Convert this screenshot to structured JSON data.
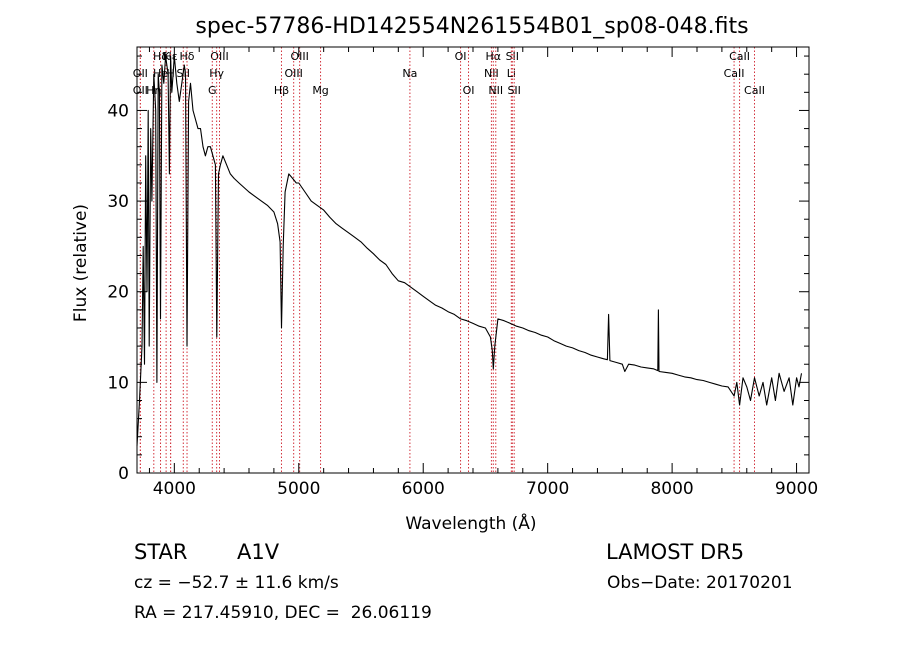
{
  "chart_data": {
    "type": "line",
    "title": "spec-57786-HD142554N261554B01_sp08-048.fits",
    "xlabel": "Wavelength (Å)",
    "ylabel": "Flux (relative)",
    "xlim": [
      3700,
      9100
    ],
    "ylim": [
      0,
      47
    ],
    "x_ticks": [
      4000,
      5000,
      6000,
      7000,
      8000,
      9000
    ],
    "y_ticks": [
      0,
      10,
      20,
      30,
      40
    ],
    "grid": false,
    "series": [
      {
        "x": [
          3700,
          3720,
          3740,
          3750,
          3760,
          3770,
          3780,
          3790,
          3798,
          3810,
          3820,
          3835,
          3850,
          3860,
          3870,
          3880,
          3889,
          3900,
          3915,
          3930,
          3950,
          3960,
          3970,
          3980,
          3990,
          4000,
          4020,
          4040,
          4060,
          4080,
          4090,
          4102,
          4115,
          4130,
          4150,
          4170,
          4190,
          4210,
          4230,
          4250,
          4270,
          4290,
          4310,
          4330,
          4341,
          4355,
          4370,
          4390,
          4420,
          4450,
          4480,
          4520,
          4560,
          4600,
          4650,
          4700,
          4750,
          4800,
          4830,
          4850,
          4861,
          4875,
          4890,
          4920,
          4950,
          4980,
          5000,
          5050,
          5100,
          5150,
          5200,
          5250,
          5300,
          5350,
          5400,
          5450,
          5500,
          5550,
          5600,
          5650,
          5700,
          5750,
          5800,
          5850,
          5900,
          5950,
          6000,
          6050,
          6100,
          6150,
          6200,
          6250,
          6300,
          6350,
          6400,
          6450,
          6500,
          6540,
          6555,
          6563,
          6575,
          6600,
          6650,
          6700,
          6750,
          6800,
          6850,
          6900,
          6950,
          7000,
          7050,
          7100,
          7150,
          7200,
          7250,
          7300,
          7350,
          7400,
          7450,
          7480,
          7490,
          7500,
          7550,
          7600,
          7620,
          7650,
          7700,
          7750,
          7800,
          7850,
          7885,
          7890,
          7895,
          7950,
          8000,
          8050,
          8100,
          8150,
          8200,
          8250,
          8300,
          8350,
          8400,
          8450,
          8498,
          8520,
          8542,
          8570,
          8600,
          8630,
          8662,
          8700,
          8730,
          8760,
          8800,
          8830,
          8860,
          8900,
          8940,
          8970,
          9000,
          9020,
          9040
        ],
        "y": [
          3,
          8,
          14,
          25,
          12,
          35,
          20,
          40,
          14,
          38,
          30,
          44,
          40,
          10,
          44,
          42,
          17,
          45,
          43,
          46,
          44,
          33,
          46,
          42,
          44,
          46,
          43,
          41,
          43,
          45,
          44,
          14,
          41,
          43,
          40,
          39,
          38,
          38,
          36,
          35,
          36,
          36,
          35,
          34,
          15,
          33,
          34,
          35,
          34,
          33,
          32.5,
          32,
          31.5,
          31,
          30.5,
          30,
          29.5,
          28.8,
          27.5,
          25.5,
          16,
          25,
          31,
          33,
          32.5,
          32,
          32,
          31,
          30,
          29.5,
          29,
          28.2,
          27.5,
          27,
          26.5,
          26,
          25.5,
          24.8,
          24.2,
          23.5,
          23,
          22,
          21.2,
          21,
          20.5,
          20,
          19.5,
          19,
          18.5,
          18.2,
          17.8,
          17.5,
          17,
          16.8,
          16.5,
          16.2,
          16,
          15,
          13.5,
          11.5,
          14,
          17,
          16.8,
          16.5,
          16.2,
          16,
          15.7,
          15.5,
          15.2,
          15,
          14.6,
          14.3,
          14,
          13.8,
          13.5,
          13.3,
          13,
          12.8,
          12.6,
          12.5,
          17.5,
          12.4,
          12.2,
          12,
          11.2,
          12,
          11.9,
          11.7,
          11.6,
          11.5,
          11.3,
          18,
          11.2,
          11.1,
          11,
          10.8,
          10.6,
          10.5,
          10.3,
          10.2,
          10,
          9.8,
          9.6,
          9.5,
          8.5,
          10,
          7.5,
          10.5,
          9.5,
          8,
          10.5,
          8.5,
          10,
          7.5,
          10.5,
          8,
          11,
          9,
          10.5,
          7.5,
          10.5,
          9.5,
          11
        ]
      }
    ],
    "lines": [
      {
        "label": "Hδ",
        "wl": 3889,
        "row": 0
      },
      {
        "label": "K",
        "wl": 3934,
        "row": 0
      },
      {
        "label": "Hε",
        "wl": 3970,
        "row": 0
      },
      {
        "label": "Hδ",
        "wl": 4102,
        "row": 0
      },
      {
        "label": "OIII",
        "wl": 4363,
        "row": 0
      },
      {
        "label": "OII",
        "wl": 3727,
        "row": 1
      },
      {
        "label": "He",
        "wl": 3889,
        "row": 1
      },
      {
        "label": "H",
        "wl": 3970,
        "row": 1
      },
      {
        "label": "SII",
        "wl": 4072,
        "row": 1
      },
      {
        "label": "Hγ",
        "wl": 4340,
        "row": 1
      },
      {
        "label": "OII",
        "wl": 3727,
        "row": 2
      },
      {
        "label": "Hη",
        "wl": 3835,
        "row": 2
      },
      {
        "label": "G",
        "wl": 4305,
        "row": 2
      },
      {
        "label": "Hβ",
        "wl": 4861,
        "row": 2
      },
      {
        "label": "OIII",
        "wl": 4959,
        "row": 1
      },
      {
        "label": "OIII",
        "wl": 5007,
        "row": 0
      },
      {
        "label": "Mg",
        "wl": 5175,
        "row": 2
      },
      {
        "label": "Na",
        "wl": 5893,
        "row": 1
      },
      {
        "label": "OI",
        "wl": 6300,
        "row": 0
      },
      {
        "label": "OI",
        "wl": 6364,
        "row": 2
      },
      {
        "label": "NII",
        "wl": 6548,
        "row": 1
      },
      {
        "label": "Hα",
        "wl": 6563,
        "row": 0
      },
      {
        "label": "NII",
        "wl": 6583,
        "row": 2
      },
      {
        "label": "SII",
        "wl": 6716,
        "row": 0
      },
      {
        "label": "Li",
        "wl": 6708,
        "row": 1
      },
      {
        "label": "SII",
        "wl": 6731,
        "row": 2
      },
      {
        "label": "CaII",
        "wl": 8542,
        "row": 0
      },
      {
        "label": "CaII",
        "wl": 8498,
        "row": 1
      },
      {
        "label": "CaII",
        "wl": 8662,
        "row": 2
      }
    ],
    "line_color": "#d2323c"
  },
  "info": {
    "class_label": "STAR",
    "subclass": "A1V",
    "survey": "LAMOST DR5",
    "cz": "cz = −52.7 ± 11.6 km/s",
    "obs_date": "Obs−Date: 20170201",
    "radec": "RA = 217.45910, DEC =  26.06119"
  }
}
